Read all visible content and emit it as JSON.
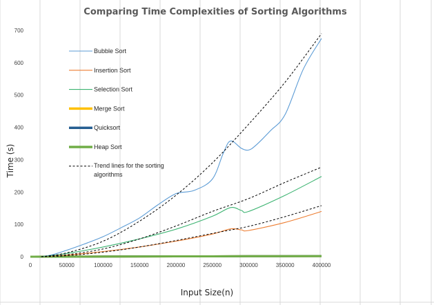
{
  "chart_data": {
    "type": "line",
    "title": "Comparing Time Complexities of Sorting Algorithms",
    "xlabel": "Input Size(n)",
    "ylabel": "Time (s)",
    "xlim": [
      0,
      400000
    ],
    "ylim": [
      0,
      700
    ],
    "x_ticks": [
      "0",
      "50000",
      "100000",
      "150000",
      "200000",
      "250000",
      "300000",
      "350000",
      "400000"
    ],
    "y_ticks": [
      "0",
      "100",
      "200",
      "300",
      "400",
      "500",
      "600",
      "700"
    ],
    "grid": false,
    "legend_position": "top-left",
    "series": [
      {
        "name": "Bubble Sort",
        "color": "#5b9bd5",
        "style": "solid",
        "x": [
          15000,
          30000,
          50000,
          75000,
          100000,
          125000,
          150000,
          175000,
          200000,
          225000,
          250000,
          265000,
          275000,
          290000,
          300000,
          310000,
          330000,
          350000,
          375000,
          400000
        ],
        "y": [
          0,
          6,
          20,
          40,
          62,
          90,
          120,
          160,
          195,
          205,
          240,
          320,
          358,
          335,
          330,
          345,
          390,
          440,
          580,
          675
        ]
      },
      {
        "name": "Insertion Sort",
        "color": "#ed7d31",
        "style": "solid",
        "x": [
          15000,
          50000,
          100000,
          150000,
          200000,
          250000,
          275000,
          290000,
          300000,
          350000,
          400000
        ],
        "y": [
          0,
          5,
          16,
          30,
          48,
          70,
          86,
          83,
          81,
          106,
          140
        ]
      },
      {
        "name": "Selection Sort",
        "color": "#3cb371",
        "style": "solid",
        "x": [
          15000,
          50000,
          100000,
          150000,
          200000,
          250000,
          275000,
          290000,
          300000,
          350000,
          400000
        ],
        "y": [
          0,
          10,
          30,
          55,
          85,
          125,
          152,
          143,
          140,
          190,
          248
        ]
      },
      {
        "name": "Merge Sort",
        "color": "#ffc000",
        "style": "thick",
        "x": [
          0,
          100000,
          200000,
          300000,
          400000
        ],
        "y": [
          0,
          0.5,
          1,
          1.5,
          2
        ]
      },
      {
        "name": "Quicksort",
        "color": "#255e91",
        "style": "thick",
        "x": [
          0,
          100000,
          200000,
          300000,
          400000
        ],
        "y": [
          0,
          0.5,
          1,
          1.5,
          2
        ]
      },
      {
        "name": "Heap Sort",
        "color": "#70ad47",
        "style": "thick",
        "x": [
          0,
          100000,
          200000,
          300000,
          400000
        ],
        "y": [
          0,
          0.5,
          1,
          1.5,
          2
        ]
      }
    ],
    "trend_legend": "Trend lines for the sorting algorithms",
    "trend_lines": [
      {
        "x": [
          15000,
          50000,
          100000,
          150000,
          200000,
          250000,
          300000,
          350000,
          400000
        ],
        "y": [
          0,
          12,
          48,
          110,
          190,
          290,
          410,
          540,
          690
        ]
      },
      {
        "x": [
          15000,
          50000,
          100000,
          150000,
          200000,
          250000,
          300000,
          350000,
          400000
        ],
        "y": [
          0,
          6,
          24,
          55,
          95,
          140,
          180,
          230,
          277
        ]
      },
      {
        "x": [
          15000,
          50000,
          100000,
          150000,
          200000,
          250000,
          300000,
          350000,
          400000
        ],
        "y": [
          0,
          3,
          14,
          30,
          50,
          72,
          94,
          124,
          158
        ]
      }
    ]
  }
}
